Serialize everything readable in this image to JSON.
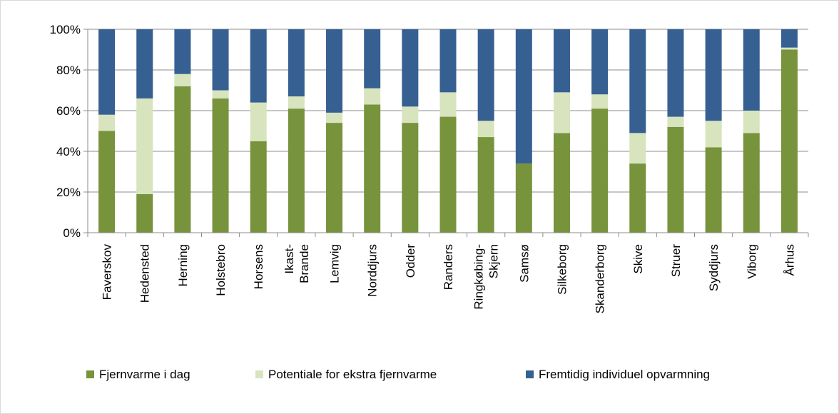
{
  "chart_data": {
    "type": "bar",
    "stacked": true,
    "percent_stacked": true,
    "categories": [
      [
        "Faverskov"
      ],
      [
        "Hedensted"
      ],
      [
        "Herning"
      ],
      [
        "Holstebro"
      ],
      [
        "Horsens"
      ],
      [
        "Ikast-",
        "Brande"
      ],
      [
        "Lemvig"
      ],
      [
        "Norddjurs"
      ],
      [
        "Odder"
      ],
      [
        "Randers"
      ],
      [
        "Ringkøbing-",
        "Skjern"
      ],
      [
        "Samsø"
      ],
      [
        "Silkeborg"
      ],
      [
        "Skanderborg"
      ],
      [
        "Skive"
      ],
      [
        "Struer"
      ],
      [
        "Syddjurs"
      ],
      [
        "Viborg"
      ],
      [
        "Århus"
      ]
    ],
    "series": [
      {
        "name": "Fjernvarme i dag",
        "color": "#77933c",
        "values": [
          50,
          19,
          72,
          66,
          45,
          61,
          54,
          63,
          54,
          57,
          47,
          34,
          49,
          61,
          34,
          52,
          42,
          49,
          90
        ]
      },
      {
        "name": "Potentiale for ekstra fjernvarme",
        "color": "#d7e4bd",
        "values": [
          8,
          47,
          6,
          4,
          19,
          6,
          5,
          8,
          8,
          12,
          8,
          0,
          20,
          7,
          15,
          5,
          13,
          11,
          1
        ]
      },
      {
        "name": "Fremtidig individuel opvarmning",
        "color": "#366092",
        "values": [
          42,
          34,
          22,
          30,
          36,
          33,
          41,
          29,
          38,
          31,
          45,
          66,
          31,
          32,
          51,
          43,
          45,
          40,
          9
        ]
      }
    ],
    "y_ticks": [
      "0%",
      "20%",
      "40%",
      "60%",
      "80%",
      "100%"
    ],
    "ylim": [
      0,
      100
    ],
    "grid": true,
    "legend_position": "bottom"
  }
}
